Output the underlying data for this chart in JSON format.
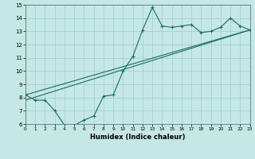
{
  "xlabel": "Humidex (Indice chaleur)",
  "xlim": [
    0,
    23
  ],
  "ylim": [
    6,
    15
  ],
  "xticks": [
    0,
    1,
    2,
    3,
    4,
    5,
    6,
    7,
    8,
    9,
    10,
    11,
    12,
    13,
    14,
    15,
    16,
    17,
    18,
    19,
    20,
    21,
    22,
    23
  ],
  "yticks": [
    6,
    7,
    8,
    9,
    10,
    11,
    12,
    13,
    14,
    15
  ],
  "bg_color": "#c5e8e4",
  "grid_color": "#a0ccca",
  "line_color": "#1a6b65",
  "curve_x": [
    0,
    1,
    2,
    3,
    4,
    5,
    6,
    7,
    8,
    9,
    10,
    11,
    12,
    13,
    14,
    15,
    16,
    17,
    18,
    19,
    20,
    21,
    22,
    23
  ],
  "curve_y": [
    8.2,
    7.8,
    7.8,
    7.0,
    5.9,
    5.9,
    6.3,
    6.6,
    8.1,
    8.2,
    10.0,
    11.1,
    13.1,
    14.8,
    13.4,
    13.3,
    13.4,
    13.5,
    12.9,
    13.0,
    13.3,
    14.0,
    13.4,
    13.1
  ],
  "trend1_x": [
    0,
    23
  ],
  "trend1_y": [
    8.2,
    13.1
  ],
  "trend2_x": [
    0,
    23
  ],
  "trend2_y": [
    7.8,
    13.1
  ]
}
